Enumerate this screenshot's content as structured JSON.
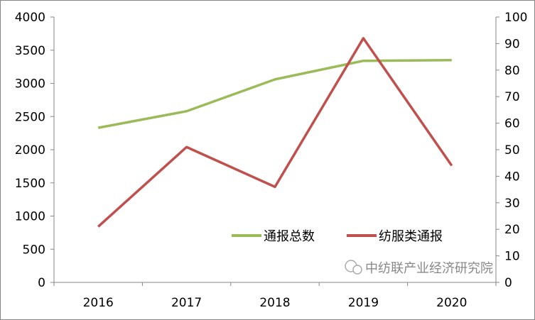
{
  "chart_data": {
    "type": "line",
    "categories": [
      "2016",
      "2017",
      "2018",
      "2019",
      "2020"
    ],
    "series": [
      {
        "name": "通报总数",
        "axis": "left",
        "color": "#9BBB59",
        "values": [
          2330,
          2580,
          3060,
          3340,
          3350
        ]
      },
      {
        "name": "纺服类通报",
        "axis": "right",
        "color": "#C0504D",
        "values": [
          21,
          51,
          36,
          92,
          44
        ]
      }
    ],
    "ylim_left": [
      0,
      4000
    ],
    "yticks_left": [
      0,
      500,
      1000,
      1500,
      2000,
      2500,
      3000,
      3500,
      4000
    ],
    "ylim_right": [
      0,
      100
    ],
    "yticks_right": [
      0,
      10,
      20,
      30,
      40,
      50,
      60,
      70,
      80,
      90,
      100
    ],
    "grid": false,
    "legend_placement": "lower-right inside plot",
    "watermark": "中纺联产业经济研究院"
  }
}
